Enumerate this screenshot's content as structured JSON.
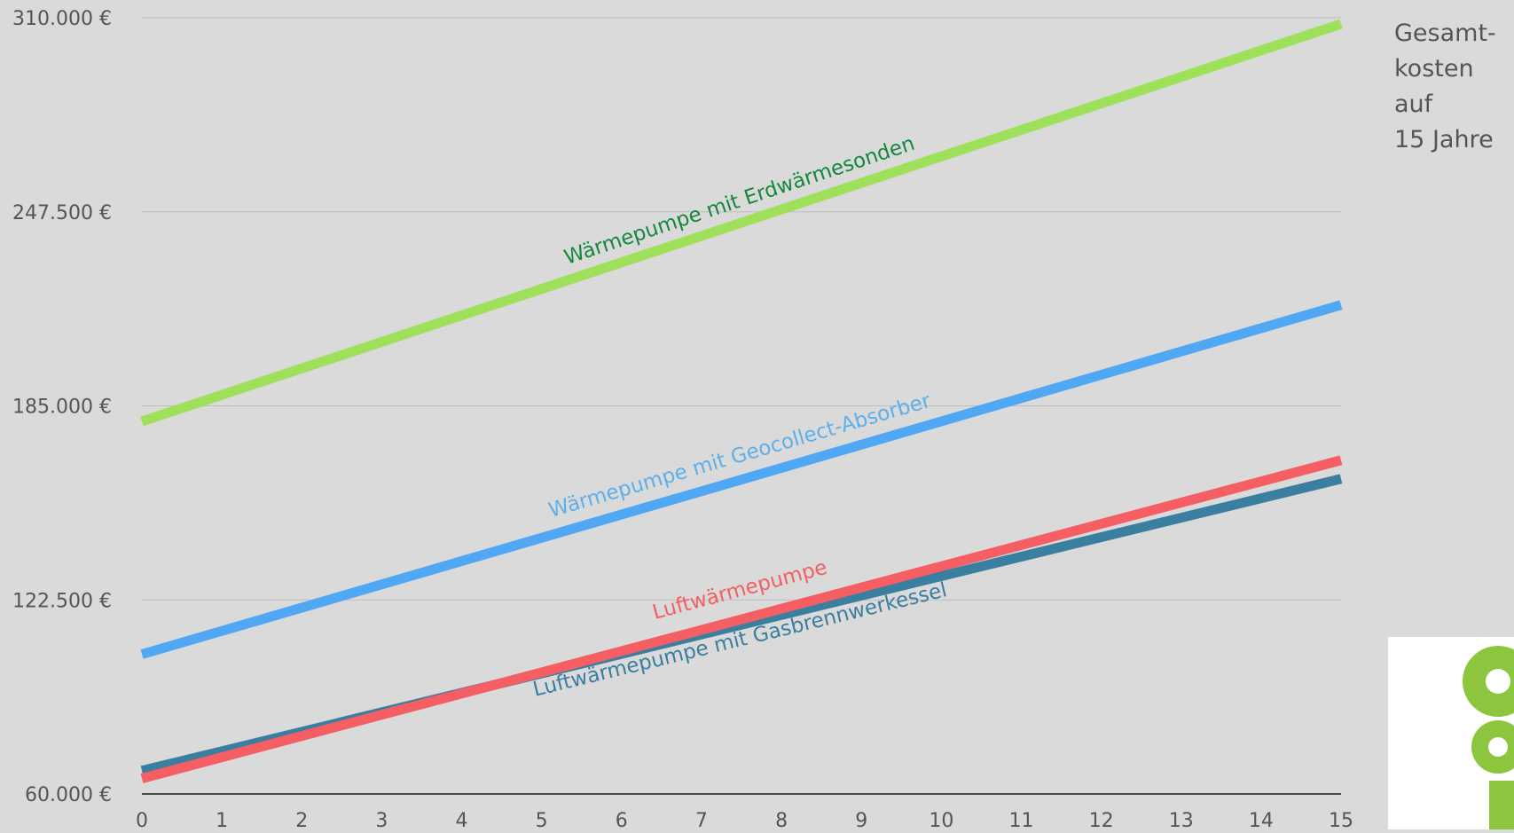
{
  "chart_data": {
    "type": "line",
    "x": [
      0,
      15
    ],
    "xticks": [
      "0",
      "1",
      "2",
      "3",
      "4",
      "5",
      "6",
      "7",
      "8",
      "9",
      "10",
      "11",
      "12",
      "13",
      "14",
      "15"
    ],
    "yticks": [
      {
        "value": 60000,
        "label": "60.000 €"
      },
      {
        "value": 122500,
        "label": "122.500 €"
      },
      {
        "value": 185000,
        "label": "185.000 €"
      },
      {
        "value": 247500,
        "label": "247.500 €"
      },
      {
        "value": 310000,
        "label": "310.000 €"
      }
    ],
    "ylim": [
      60000,
      310000
    ],
    "xlim": [
      0,
      15
    ],
    "grid": true,
    "series": [
      {
        "name": "Wärmepumpe mit Erdwärmesonden",
        "values": [
          180000,
          308000
        ],
        "color": "#9ee05a",
        "label_color": "#14883c"
      },
      {
        "name": "Wärmepumpe mit Geocollect-Absorber",
        "values": [
          105000,
          217500
        ],
        "color": "#50a8f5",
        "label_color": "#5eb0ea"
      },
      {
        "name": "Luftwärmepumpe",
        "values": [
          65000,
          167500
        ],
        "color": "#f55f63",
        "label_color": "#f55f63"
      },
      {
        "name": "Luftwärmepumpe mit Gasbrennwerkessel",
        "values": [
          67500,
          161500
        ],
        "color": "#3a7ea0",
        "label_color": "#3a7ea0"
      }
    ],
    "side_note": "Gesamt-\nkosten\nauf\n15 Jahre"
  },
  "logo": {
    "name": "brand-logo",
    "color": "#8cc63f"
  }
}
